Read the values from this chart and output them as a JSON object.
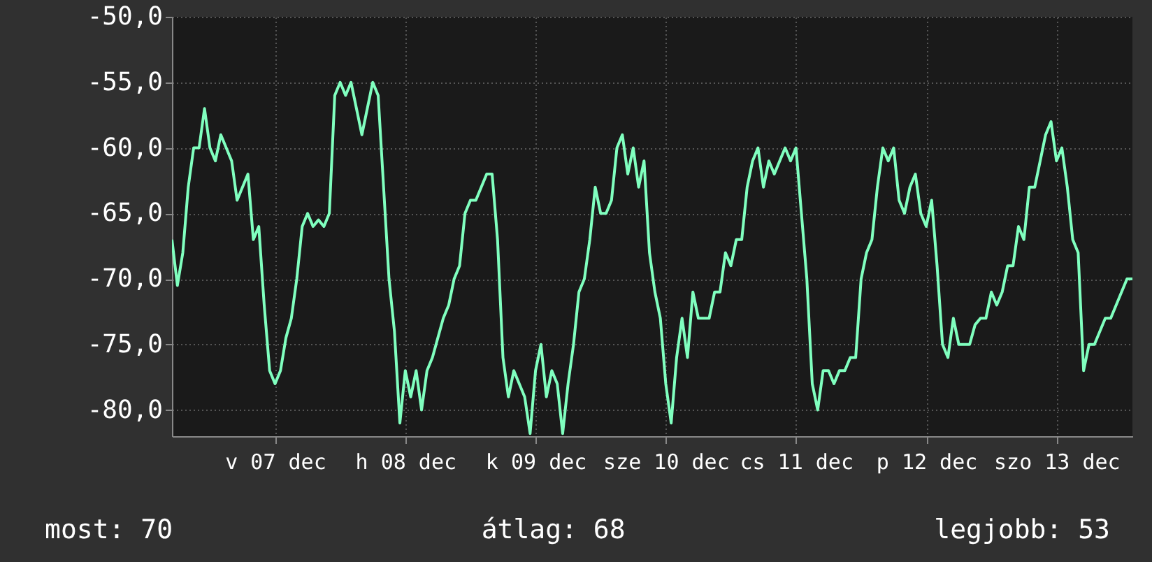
{
  "chart_data": {
    "type": "line",
    "categories": [
      null,
      null,
      null,
      null,
      null,
      null,
      null,
      null,
      null,
      null,
      null,
      null,
      null,
      null,
      null,
      null,
      null,
      null,
      null,
      "v 07 dec",
      null,
      null,
      null,
      null,
      null,
      null,
      null,
      null,
      null,
      null,
      null,
      null,
      null,
      null,
      null,
      null,
      null,
      null,
      null,
      null,
      null,
      null,
      null,
      "h 08 dec",
      null,
      null,
      null,
      null,
      null,
      null,
      null,
      null,
      null,
      null,
      null,
      null,
      null,
      null,
      null,
      null,
      null,
      null,
      null,
      null,
      null,
      null,
      null,
      "k 09 dec",
      null,
      null,
      null,
      null,
      null,
      null,
      null,
      null,
      null,
      null,
      null,
      null,
      null,
      null,
      null,
      null,
      null,
      null,
      null,
      null,
      null,
      null,
      null,
      "sze 10 dec",
      null,
      null,
      null,
      null,
      null,
      null,
      null,
      null,
      null,
      null,
      null,
      null,
      null,
      null,
      null,
      null,
      null,
      null,
      null,
      null,
      null,
      null,
      null,
      "cs 11 dec",
      null,
      null,
      null,
      null,
      null,
      null,
      null,
      null,
      null,
      null,
      null,
      null,
      null,
      null,
      null,
      null,
      null,
      null,
      null,
      null,
      null,
      null,
      null,
      "p 12 dec",
      null,
      null,
      null,
      null,
      null,
      null,
      null,
      null,
      null,
      null,
      null,
      null,
      null,
      null,
      null,
      null,
      null,
      null,
      null,
      null,
      null,
      null,
      null,
      "szo 13 dec",
      null,
      null,
      null,
      null,
      null,
      null,
      null,
      null,
      null,
      null,
      null,
      null,
      null,
      null
    ],
    "series": [
      {
        "color": "#80ffbf",
        "values": [
          -67,
          -70.5,
          -68,
          -63,
          -60,
          -60,
          -57,
          -60,
          -61,
          -59,
          -60,
          -61,
          -64,
          -63,
          -62,
          -67,
          -66,
          -72,
          -77,
          -78,
          -77,
          -74.5,
          -73,
          -70,
          -66,
          -65,
          -66,
          -65.5,
          -66,
          -65,
          -56,
          -55,
          -56,
          -55,
          -57,
          -59,
          -57,
          -55,
          -56,
          -63,
          -70,
          -74,
          -81,
          -77,
          -79,
          -77,
          -80,
          -77,
          -76,
          -74.5,
          -73,
          -72,
          -70,
          -69,
          -65,
          -64,
          -64,
          -63,
          -62,
          -62,
          -67,
          -76,
          -79,
          -77,
          -78,
          -79,
          -81.8,
          -77,
          -75,
          -79,
          -77,
          -78,
          -81.8,
          -78,
          -75,
          -71,
          -70,
          -67,
          -63,
          -65,
          -65,
          -64,
          -60,
          -59,
          -62,
          -60,
          -63,
          -61,
          -68,
          -71,
          -73,
          -78,
          -81,
          -76,
          -73,
          -76,
          -71,
          -73,
          -73,
          -73,
          -71,
          -71,
          -68,
          -69,
          -67,
          -67,
          -63,
          -61,
          -60,
          -63,
          -61,
          -62,
          -61,
          -60,
          -61,
          -60,
          -65,
          -70,
          -78,
          -80,
          -77,
          -77,
          -78,
          -77,
          -77,
          -76,
          -76,
          -70,
          -68,
          -67,
          -63,
          -60,
          -61,
          -60,
          -64,
          -65,
          -63,
          -62,
          -65,
          -66,
          -64,
          -69,
          -75,
          -76,
          -73,
          -75,
          -75,
          -75,
          -73.5,
          -73,
          -73,
          -71,
          -72,
          -71,
          -69,
          -69,
          -66,
          -67,
          -63,
          -63,
          -61,
          -59,
          -58,
          -61,
          -60,
          -63,
          -67,
          -68,
          -77,
          -75,
          -75,
          -74,
          -73,
          -73,
          -72,
          -71,
          -70,
          -70
        ]
      }
    ],
    "ylim": [
      -82,
      -50
    ],
    "yticks": [
      {
        "value": -80,
        "label": "-80,0"
      },
      {
        "value": -75,
        "label": "-75,0"
      },
      {
        "value": -70,
        "label": "-70,0"
      },
      {
        "value": -65,
        "label": "-65,0"
      },
      {
        "value": -60,
        "label": "-60,0"
      },
      {
        "value": -55,
        "label": "-55,0"
      },
      {
        "value": -50,
        "label": "-50,0"
      }
    ],
    "grid": true,
    "annotations": [
      "most: 70",
      "átlag: 68",
      "legjobb: 53"
    ]
  }
}
